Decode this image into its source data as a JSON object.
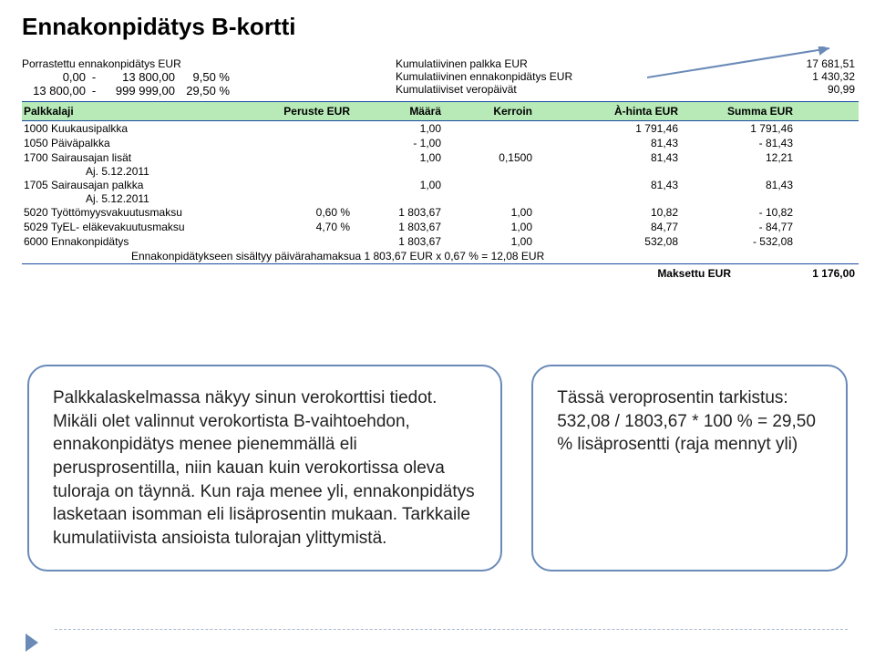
{
  "title": "Ennakonpidätys B-kortti",
  "brackets": {
    "header": "Porrastettu ennakonpidätys EUR",
    "rows": [
      {
        "from": "0,00",
        "dash": "-",
        "to": "13 800,00",
        "pct": "9,50 %"
      },
      {
        "from": "13 800,00",
        "dash": "-",
        "to": "999 999,00",
        "pct": "29,50 %"
      }
    ]
  },
  "cumulative": {
    "rows": [
      "Kumulatiivinen palkka EUR",
      "Kumulatiivinen ennakonpidätys EUR",
      "Kumulatiiviset veropäivät"
    ]
  },
  "totals": {
    "values": [
      "17 681,51",
      "1 430,32",
      "90,99"
    ]
  },
  "table": {
    "headers": {
      "laji": "Palkkalaji",
      "peruste": "Peruste EUR",
      "maara": "Määrä",
      "kerroin": "Kerroin",
      "ahinta": "À-hinta EUR",
      "summa": "Summa EUR"
    },
    "rows": [
      {
        "laji": "1000 Kuukausipalkka",
        "peruste": "",
        "maara": "1,00",
        "kerroin": "",
        "ahinta": "1 791,46",
        "summa": "1 791,46",
        "sub": null
      },
      {
        "laji": "1050 Päiväpalkka",
        "peruste": "",
        "maara": "- 1,00",
        "kerroin": "",
        "ahinta": "81,43",
        "summa": "- 81,43",
        "sub": null
      },
      {
        "laji": "1700 Sairausajan lisät",
        "peruste": "",
        "maara": "1,00",
        "kerroin": "0,1500",
        "ahinta": "81,43",
        "summa": "12,21",
        "sub": "Aj. 5.12.2011"
      },
      {
        "laji": "1705 Sairausajan palkka",
        "peruste": "",
        "maara": "1,00",
        "kerroin": "",
        "ahinta": "81,43",
        "summa": "81,43",
        "sub": "Aj. 5.12.2011"
      },
      {
        "laji": "5020 Työttömyysvakuutusmaksu",
        "peruste": "0,60 %",
        "maara": "1 803,67",
        "kerroin": "1,00",
        "ahinta": "10,82",
        "summa": "- 10,82",
        "sub": null
      },
      {
        "laji": "5029 TyEL- eläkevakuutusmaksu",
        "peruste": "4,70 %",
        "maara": "1 803,67",
        "kerroin": "1,00",
        "ahinta": "84,77",
        "summa": "- 84,77",
        "sub": null
      },
      {
        "laji": "6000 Ennakonpidätys",
        "peruste": "",
        "maara": "1 803,67",
        "kerroin": "1,00",
        "ahinta": "532,08",
        "summa": "- 532,08",
        "sub": null
      }
    ],
    "footnote": "Ennakonpidätykseen sisältyy päivärahamaksua 1 803,67 EUR x 0,67 % = 12,08 EUR",
    "paid_label": "Maksettu EUR",
    "paid_value": "1 176,00"
  },
  "callout_left": {
    "lines": [
      "Palkkalaskelmassa näkyy sinun verokorttisi tiedot.",
      "Mikäli olet valinnut verokortista B-vaihtoehdon, ennakonpidätys menee pienemmällä eli perusprosentilla, niin kauan kuin verokortissa oleva tuloraja on täynnä. Kun raja menee yli, ennakonpidätys lasketaan isomman eli lisäprosentin mukaan. Tarkkaile kumulatiivista ansioista tulorajan ylittymistä."
    ]
  },
  "callout_right": {
    "lines": [
      "Tässä veroprosentin tarkistus:",
      "532,08 / 1803,67 * 100 % = 29,50 % lisäprosentti (raja mennyt yli)"
    ]
  },
  "colors": {
    "header_bg": "#b7eab7",
    "border": "#1a4aa0",
    "callout_border": "#6a8ab8"
  }
}
